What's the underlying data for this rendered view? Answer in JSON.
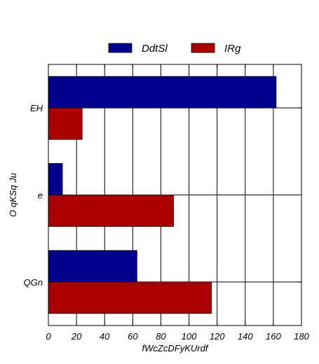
{
  "chart_data": {
    "type": "bar",
    "orientation": "horizontal",
    "categories": [
      "EH",
      "e",
      "QGn"
    ],
    "series": [
      {
        "name": "DdtSl",
        "color": "#00008b",
        "values": [
          162,
          10,
          63
        ]
      },
      {
        "name": "IRg",
        "color": "#aa0000",
        "values": [
          24,
          89,
          116
        ]
      }
    ],
    "xlabel": "fWcZcDFyKUrdf",
    "ylabel": "O qKSq Ju",
    "xlim": [
      0,
      180
    ],
    "xticks": [
      0,
      20,
      40,
      60,
      80,
      100,
      120,
      140,
      160,
      180
    ],
    "grid": true,
    "legend_position": "top-center"
  }
}
